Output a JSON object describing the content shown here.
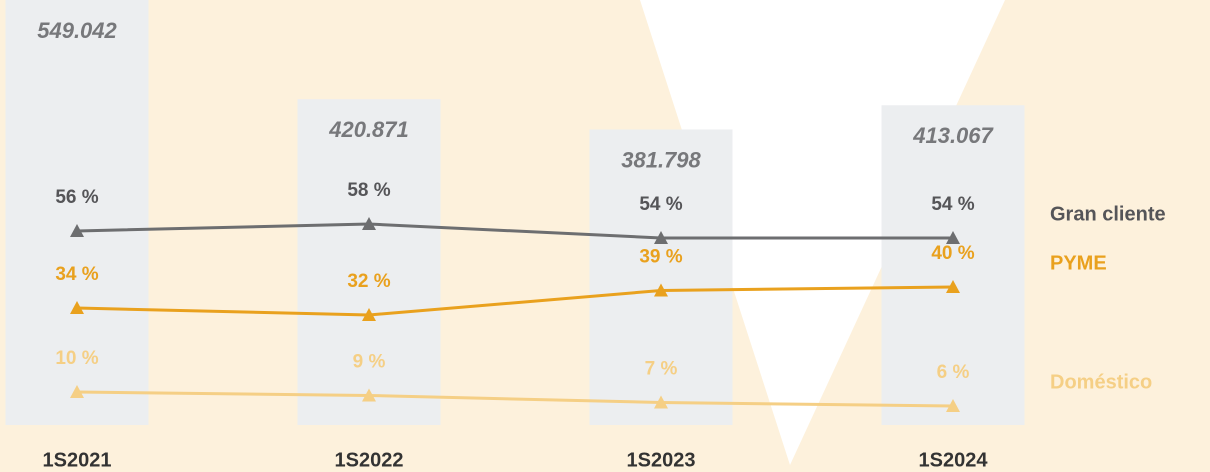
{
  "chart_data": {
    "type": "line",
    "categories": [
      "1S2021",
      "1S2022",
      "1S2023",
      "1S2024"
    ],
    "bars": {
      "color": "#eceef0",
      "values": [
        549042,
        420871,
        381798,
        413067
      ],
      "value_labels": [
        "549.042",
        "420.871",
        "381.798",
        "413.067"
      ]
    },
    "series": [
      {
        "name": "Gran cliente",
        "color": "#6d6e70",
        "label_color": "#555558",
        "values": [
          56,
          58,
          54,
          54
        ],
        "value_labels": [
          "56 %",
          "58 %",
          "54 %",
          "54 %"
        ]
      },
      {
        "name": "PYME",
        "color": "#e9a11e",
        "label_color": "#e9a11e",
        "values": [
          34,
          32,
          39,
          40
        ],
        "value_labels": [
          "34 %",
          "32 %",
          "39 %",
          "40 %"
        ]
      },
      {
        "name": "Doméstico",
        "color": "#f5cf85",
        "label_color": "#f5cf85",
        "values": [
          10,
          9,
          7,
          6
        ],
        "value_labels": [
          "10 %",
          "9 %",
          "7 %",
          "6 %"
        ]
      }
    ]
  }
}
